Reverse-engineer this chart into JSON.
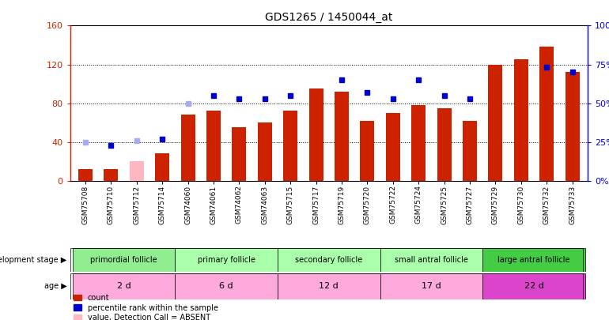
{
  "title": "GDS1265 / 1450044_at",
  "samples": [
    "GSM75708",
    "GSM75710",
    "GSM75712",
    "GSM75714",
    "GSM74060",
    "GSM74061",
    "GSM74062",
    "GSM74063",
    "GSM75715",
    "GSM75717",
    "GSM75719",
    "GSM75720",
    "GSM75722",
    "GSM75724",
    "GSM75725",
    "GSM75727",
    "GSM75729",
    "GSM75730",
    "GSM75732",
    "GSM75733"
  ],
  "counts": [
    12,
    12,
    null,
    28,
    68,
    72,
    55,
    60,
    72,
    95,
    92,
    62,
    70,
    78,
    75,
    62,
    120,
    125,
    138,
    112
  ],
  "absent_counts": [
    null,
    null,
    20,
    null,
    null,
    null,
    null,
    null,
    null,
    null,
    null,
    null,
    null,
    null,
    null,
    null,
    null,
    null,
    null,
    null
  ],
  "ranks": [
    null,
    23,
    null,
    27,
    null,
    55,
    53,
    53,
    55,
    null,
    65,
    57,
    53,
    65,
    55,
    53,
    null,
    null,
    73,
    70
  ],
  "absent_ranks": [
    25,
    null,
    26,
    null,
    50,
    null,
    null,
    null,
    null,
    null,
    null,
    null,
    null,
    null,
    null,
    null,
    null,
    null,
    null,
    null
  ],
  "left_ylim": [
    0,
    160
  ],
  "right_ylim": [
    0,
    100
  ],
  "left_yticks": [
    0,
    40,
    80,
    120,
    160
  ],
  "right_yticks": [
    0,
    25,
    50,
    75,
    100
  ],
  "left_yticklabels": [
    "0",
    "40",
    "80",
    "120",
    "160"
  ],
  "right_yticklabels": [
    "0%",
    "25%",
    "50%",
    "75%",
    "100%"
  ],
  "groups": [
    {
      "label": "primordial follicle",
      "age": "2 d",
      "start": 0,
      "end": 4,
      "stage_color": "#90ee90",
      "age_color": "#ffaadd"
    },
    {
      "label": "primary follicle",
      "age": "6 d",
      "start": 4,
      "end": 8,
      "stage_color": "#aaffaa",
      "age_color": "#ffaadd"
    },
    {
      "label": "secondary follicle",
      "age": "12 d",
      "start": 8,
      "end": 12,
      "stage_color": "#aaffaa",
      "age_color": "#ffaadd"
    },
    {
      "label": "small antral follicle",
      "age": "17 d",
      "start": 12,
      "end": 16,
      "stage_color": "#aaffaa",
      "age_color": "#ffaadd"
    },
    {
      "label": "large antral follicle",
      "age": "22 d",
      "start": 16,
      "end": 20,
      "stage_color": "#44cc44",
      "age_color": "#dd44cc"
    }
  ],
  "bar_color": "#cc2200",
  "absent_bar_color": "#ffb6c1",
  "rank_color": "#0000cc",
  "absent_rank_color": "#aaaaee",
  "left_axis_color": "#cc2200",
  "right_axis_color": "#0000cc",
  "xtick_bg_color": "#cccccc"
}
